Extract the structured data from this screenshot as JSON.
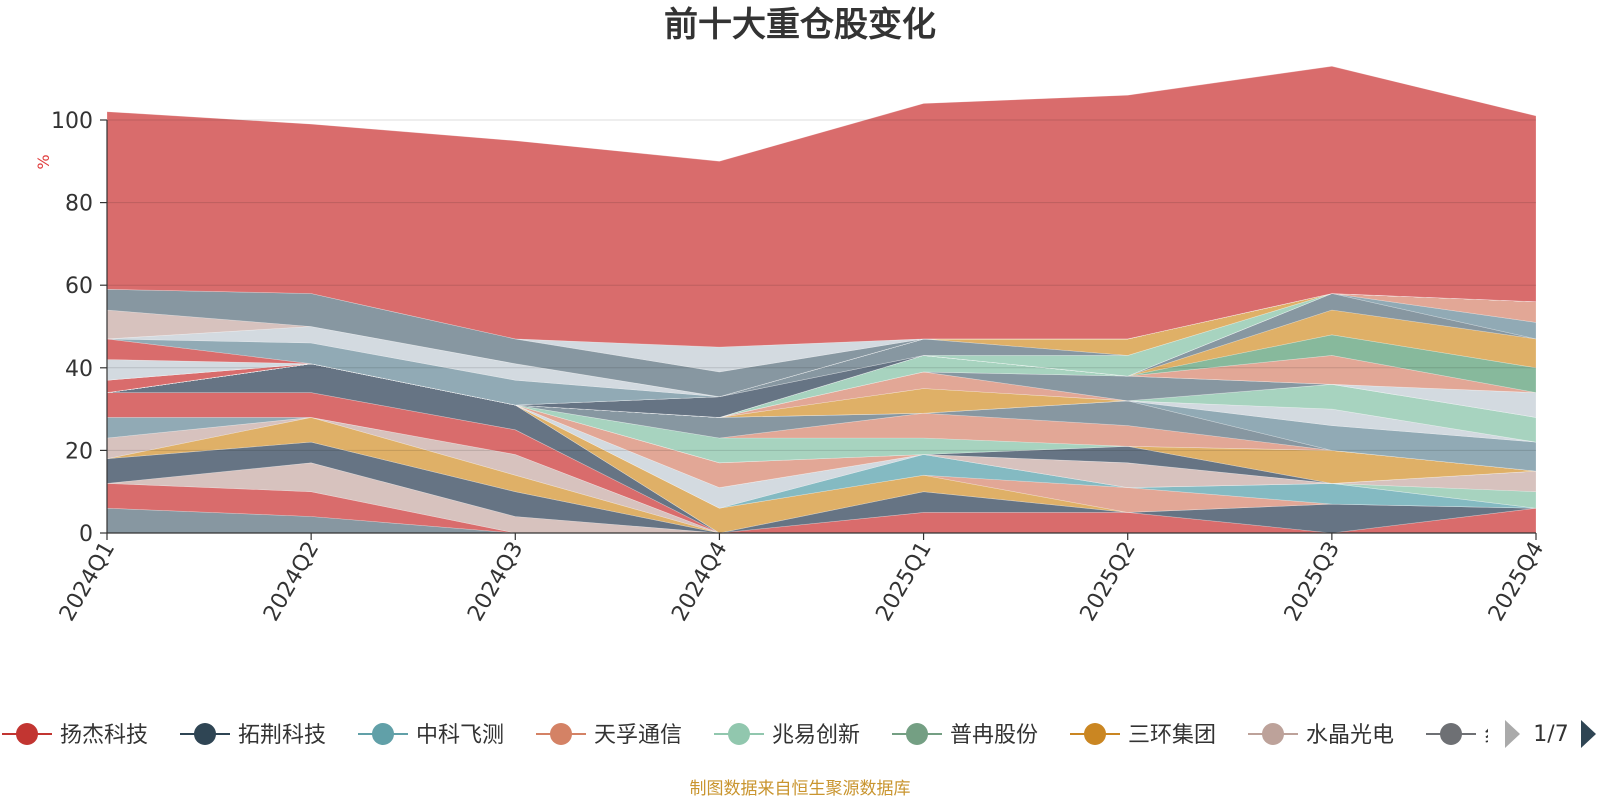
{
  "chart_data": {
    "type": "area",
    "title": "前十大重仓股变化",
    "ylabel": "%",
    "ylim": [
      0,
      100
    ],
    "y_ticks": [
      "0",
      "20",
      "40",
      "60",
      "80",
      "100"
    ],
    "categories": [
      "2024Q1",
      "2024Q2",
      "2024Q3",
      "2024Q4",
      "2025Q1",
      "2025Q2",
      "2025Q3",
      "2025Q4"
    ],
    "stacked": true,
    "grid": true,
    "bands": [
      {
        "color": "#7d8e99",
        "values": [
          6,
          4,
          0,
          0,
          0,
          0,
          0,
          0
        ]
      },
      {
        "color": "#d6605f",
        "values": [
          6,
          6,
          0,
          0,
          0,
          0,
          0,
          0
        ]
      },
      {
        "color": "#d4bdb8",
        "values": [
          0,
          7,
          4,
          0,
          0,
          0,
          0,
          0
        ]
      },
      {
        "color": "#59687a",
        "values": [
          6,
          5,
          6,
          0,
          0,
          0,
          0,
          0
        ]
      },
      {
        "color": "#dca95a",
        "values": [
          0,
          6,
          4,
          0,
          0,
          0,
          0,
          0
        ]
      },
      {
        "color": "#d4bdb8",
        "values": [
          5,
          0,
          5,
          0,
          0,
          0,
          0,
          0
        ]
      },
      {
        "color": "#88a3af",
        "values": [
          5,
          0,
          0,
          0,
          0,
          0,
          0,
          0
        ]
      },
      {
        "color": "#d6605f",
        "values": [
          6,
          6,
          6,
          0,
          0,
          0,
          0,
          0
        ]
      },
      {
        "color": "#59687a",
        "values": [
          0,
          7,
          6,
          0,
          0,
          0,
          0,
          0
        ]
      },
      {
        "color": "#d6605f",
        "values": [
          0,
          0,
          0,
          0,
          5,
          5,
          0,
          6
        ]
      },
      {
        "color": "#59687a",
        "values": [
          0,
          0,
          0,
          0,
          5,
          0,
          7,
          0
        ]
      },
      {
        "color": "#dca95a",
        "values": [
          0,
          0,
          0,
          6,
          4,
          0,
          0,
          0
        ]
      },
      {
        "color": "#e0a08d",
        "values": [
          0,
          0,
          0,
          0,
          0,
          6,
          0,
          0
        ]
      },
      {
        "color": "#7ab4bd",
        "values": [
          0,
          0,
          0,
          0,
          5,
          0,
          5,
          0
        ]
      },
      {
        "color": "#cfd7dd",
        "values": [
          0,
          0,
          0,
          5,
          0,
          0,
          0,
          0
        ]
      },
      {
        "color": "#9fcfba",
        "values": [
          0,
          0,
          0,
          0,
          0,
          0,
          0,
          4
        ]
      },
      {
        "color": "#d4bdb8",
        "values": [
          0,
          0,
          0,
          0,
          0,
          6,
          0,
          5
        ]
      },
      {
        "color": "#e0a08d",
        "values": [
          0,
          0,
          0,
          6,
          0,
          0,
          0,
          0
        ]
      },
      {
        "color": "#59687a",
        "values": [
          0,
          0,
          0,
          0,
          0,
          4,
          0,
          0
        ]
      },
      {
        "color": "#dca95a",
        "values": [
          0,
          0,
          0,
          0,
          0,
          0,
          8,
          0
        ]
      },
      {
        "color": "#9fcfba",
        "values": [
          0,
          0,
          0,
          6,
          4,
          0,
          0,
          0
        ]
      },
      {
        "color": "#e0a08d",
        "values": [
          0,
          0,
          0,
          0,
          6,
          5,
          0,
          0
        ]
      },
      {
        "color": "#7d8e99",
        "values": [
          0,
          0,
          0,
          5,
          0,
          6,
          0,
          0
        ]
      },
      {
        "color": "#88a3af",
        "values": [
          0,
          0,
          0,
          0,
          0,
          0,
          6,
          7
        ]
      },
      {
        "color": "#cfd7dd",
        "values": [
          0,
          0,
          0,
          0,
          0,
          0,
          4,
          0
        ]
      },
      {
        "color": "#dca95a",
        "values": [
          0,
          0,
          0,
          0,
          6,
          0,
          0,
          0
        ]
      },
      {
        "color": "#9fcfba",
        "values": [
          0,
          0,
          0,
          0,
          0,
          0,
          6,
          6
        ]
      },
      {
        "color": "#e0a08d",
        "values": [
          0,
          0,
          0,
          0,
          4,
          0,
          0,
          0
        ]
      },
      {
        "color": "#7d8e99",
        "values": [
          0,
          0,
          0,
          0,
          0,
          6,
          0,
          0
        ]
      },
      {
        "color": "#cfd7dd",
        "values": [
          0,
          0,
          0,
          0,
          0,
          0,
          0,
          6
        ]
      },
      {
        "color": "#9fcfba",
        "values": [
          0,
          0,
          0,
          0,
          4,
          0,
          0,
          0
        ]
      },
      {
        "color": "#e0a08d",
        "values": [
          0,
          0,
          0,
          0,
          0,
          0,
          7,
          0
        ]
      },
      {
        "color": "#7db394",
        "values": [
          0,
          0,
          0,
          0,
          0,
          0,
          5,
          6
        ]
      },
      {
        "color": "#dca95a",
        "values": [
          0,
          0,
          0,
          0,
          0,
          0,
          6,
          7
        ]
      },
      {
        "color": "#7d8e99",
        "values": [
          0,
          0,
          0,
          0,
          0,
          0,
          4,
          0
        ]
      },
      {
        "color": "#88a3af",
        "values": [
          0,
          0,
          0,
          0,
          0,
          0,
          0,
          4
        ]
      },
      {
        "color": "#e0a08d",
        "values": [
          0,
          0,
          0,
          0,
          0,
          0,
          0,
          5
        ]
      },
      {
        "color": "#d6605f",
        "values": [
          3,
          0,
          0,
          0,
          0,
          0,
          0,
          0
        ]
      },
      {
        "color": "#59687a",
        "values": [
          0,
          0,
          0,
          5,
          0,
          0,
          0,
          0
        ]
      },
      {
        "color": "#9fcfba",
        "values": [
          0,
          0,
          0,
          0,
          0,
          5,
          0,
          0
        ]
      },
      {
        "color": "#7d8e99",
        "values": [
          0,
          0,
          0,
          0,
          4,
          0,
          0,
          0
        ]
      },
      {
        "color": "#dca95a",
        "values": [
          0,
          0,
          0,
          0,
          0,
          4,
          0,
          0
        ]
      },
      {
        "color": "#cfd7dd",
        "values": [
          5,
          0,
          0,
          0,
          0,
          0,
          0,
          0
        ]
      },
      {
        "color": "#d6605f",
        "values": [
          5,
          0,
          0,
          0,
          0,
          0,
          0,
          0
        ]
      },
      {
        "color": "#88a3af",
        "values": [
          0,
          5,
          6,
          0,
          0,
          0,
          0,
          0
        ]
      },
      {
        "color": "#cfd7dd",
        "values": [
          0,
          4,
          4,
          0,
          0,
          0,
          0,
          0
        ]
      },
      {
        "color": "#d4bdb8",
        "values": [
          7,
          0,
          0,
          0,
          0,
          0,
          0,
          0
        ]
      },
      {
        "color": "#7d8e99",
        "values": [
          5,
          8,
          6,
          6,
          0,
          0,
          0,
          0
        ]
      },
      {
        "color": "#cfd7dd",
        "values": [
          0,
          0,
          0,
          6,
          0,
          0,
          0,
          0
        ]
      },
      {
        "color": "#d6605f",
        "values": [
          43,
          41,
          48,
          45,
          57,
          59,
          55,
          45
        ]
      }
    ],
    "legend": {
      "position": "bottom",
      "items": [
        {
          "name": "扬杰科技",
          "color": "#c23531"
        },
        {
          "name": "拓荆科技",
          "color": "#2f4554"
        },
        {
          "name": "中科飞测",
          "color": "#61a0a8"
        },
        {
          "name": "天孚通信",
          "color": "#d48265"
        },
        {
          "name": "兆易创新",
          "color": "#91c7ae"
        },
        {
          "name": "普冉股份",
          "color": "#749f83"
        },
        {
          "name": "三环集团",
          "color": "#ca8622"
        },
        {
          "name": "水晶光电",
          "color": "#bda29a"
        },
        {
          "name": "",
          "color": "#6e7074"
        }
      ],
      "clipped_text": "纟",
      "page": "1/7"
    },
    "footer": "制图数据来自恒生聚源数据库"
  }
}
